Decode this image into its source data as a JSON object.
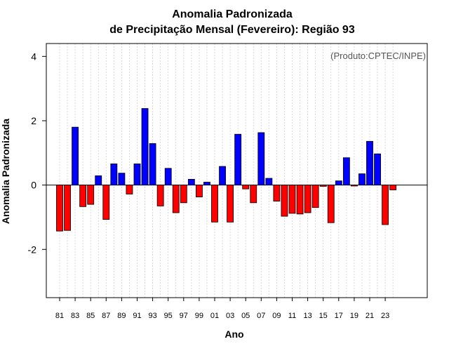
{
  "chart_data": {
    "type": "bar",
    "title_line1": "Anomalia Padronizada",
    "title_line2": "de Precipitação Mensal (Fevereiro): Região 93",
    "xlabel": "Ano",
    "ylabel": "Anomalia Padronizada",
    "credit": "(Produto:CPTEC/INPE)",
    "ylim": [
      -3.5,
      4.4
    ],
    "yticks": [
      -2,
      0,
      2,
      4
    ],
    "positive_color": "#0000ff",
    "negative_color": "#ff0000",
    "grid": true,
    "categories": [
      "81",
      "82",
      "83",
      "84",
      "85",
      "86",
      "87",
      "88",
      "89",
      "90",
      "91",
      "92",
      "93",
      "94",
      "95",
      "96",
      "97",
      "98",
      "99",
      "00",
      "01",
      "02",
      "03",
      "04",
      "05",
      "06",
      "07",
      "08",
      "09",
      "10",
      "11",
      "12",
      "13",
      "14",
      "15",
      "16",
      "17",
      "18",
      "19",
      "20",
      "21",
      "22",
      "23",
      "24"
    ],
    "tick_labels": [
      "81",
      "83",
      "85",
      "87",
      "89",
      "91",
      "93",
      "95",
      "97",
      "99",
      "01",
      "03",
      "05",
      "07",
      "09",
      "11",
      "13",
      "15",
      "17",
      "19",
      "21",
      "23"
    ],
    "values": [
      -1.43,
      -1.41,
      1.8,
      -0.67,
      -0.6,
      0.29,
      -1.07,
      0.66,
      0.37,
      -0.28,
      0.66,
      2.38,
      1.29,
      -0.65,
      0.52,
      -0.86,
      -0.55,
      0.18,
      -0.37,
      0.09,
      -1.15,
      0.58,
      -1.15,
      1.58,
      -0.12,
      -0.55,
      1.63,
      0.21,
      -0.5,
      -0.97,
      -0.88,
      -0.9,
      -0.86,
      -0.7,
      -0.04,
      -1.17,
      0.13,
      0.85,
      -0.03,
      0.35,
      1.36,
      0.97,
      -1.23,
      -0.15
    ]
  }
}
